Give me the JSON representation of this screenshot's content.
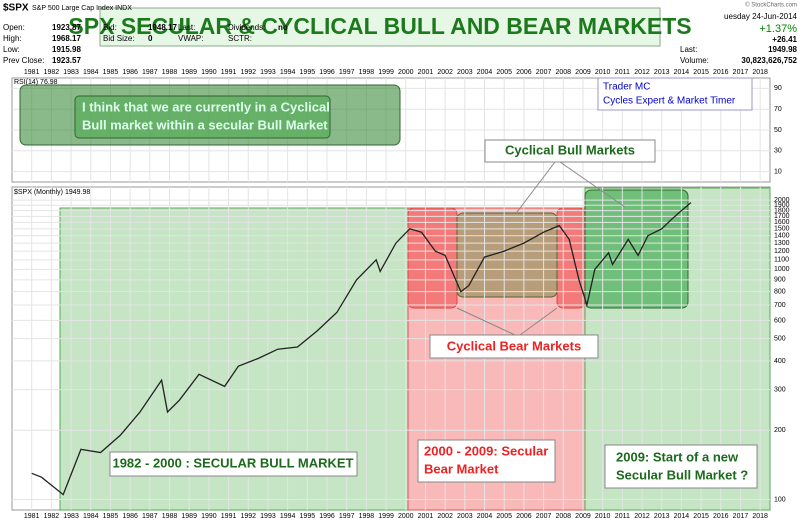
{
  "chart_data": {
    "type": "line",
    "title": "SPX SECULAR & CYCLICAL BULL AND BEAR MARKETS",
    "header": {
      "symbol": "$SPX",
      "name": "S&P 500 Large Cap Index INDX",
      "date": "uesday 24-Jun-2014",
      "fields": [
        [
          "Open:",
          "1923.87"
        ],
        [
          "High:",
          "1968.17"
        ],
        [
          "Low:",
          "1915.98"
        ],
        [
          "Prev Close:",
          "1923.57"
        ]
      ],
      "fields2": [
        [
          "Bid:",
          "1948.17"
        ],
        [
          "Bid Size:",
          "0"
        ]
      ],
      "fields3": [
        [
          "Last:",
          ""
        ],
        [
          "VWAP:",
          ""
        ]
      ],
      "fields4": [
        [
          "Dividends:",
          "no"
        ],
        [
          "SCTR:",
          ""
        ]
      ],
      "change_pct": "+1.37%",
      "change": "+26.41",
      "last": [
        "Last:",
        "1949.98"
      ],
      "volume": [
        "Volume:",
        "30,823,626,752"
      ],
      "credit": "© StockCharts.com"
    },
    "rsi_label": "RSI(14) 76.98",
    "rsi_ylim": [
      0,
      100
    ],
    "rsi_yticks": [
      10,
      30,
      50,
      70,
      90
    ],
    "price_label": "$SPX (Monthly) 1949.98",
    "log_scale": true,
    "color": "#222222",
    "x": [
      1981,
      1981.5,
      1982.6,
      1983.5,
      1984.5,
      1985.5,
      1986.5,
      1987.6,
      1987.9,
      1988.5,
      1989.5,
      1990.8,
      1991.5,
      1992.5,
      1993.5,
      1994.5,
      1995.5,
      1996.5,
      1997.5,
      1998.5,
      1998.7,
      1999.5,
      2000.2,
      2000.8,
      2001.5,
      2002.0,
      2002.8,
      2003.2,
      2004.0,
      2005.0,
      2006.0,
      2007.0,
      2007.8,
      2008.3,
      2008.8,
      2009.2,
      2009.6,
      2010.3,
      2010.5,
      2011.3,
      2011.8,
      2012.3,
      2013.0,
      2013.5,
      2014.0,
      2014.48
    ],
    "values": [
      130,
      125,
      105,
      165,
      160,
      190,
      240,
      330,
      240,
      270,
      350,
      310,
      380,
      410,
      450,
      460,
      540,
      650,
      900,
      1100,
      980,
      1300,
      1500,
      1450,
      1200,
      1150,
      800,
      850,
      1130,
      1200,
      1300,
      1450,
      1550,
      1350,
      900,
      700,
      1000,
      1180,
      1050,
      1350,
      1150,
      1400,
      1500,
      1650,
      1800,
      1949.98
    ],
    "xlim": [
      1980,
      2018.5
    ],
    "xticks": [
      1981,
      1982,
      1983,
      1984,
      1985,
      1986,
      1987,
      1988,
      1989,
      1990,
      1991,
      1992,
      1993,
      1994,
      1995,
      1996,
      1997,
      1998,
      1999,
      2000,
      2001,
      2002,
      2003,
      2004,
      2005,
      2006,
      2007,
      2008,
      2009,
      2010,
      2011,
      2012,
      2013,
      2014,
      2015,
      2016,
      2017,
      2018
    ],
    "ylim": [
      90,
      2280
    ],
    "yticks": [
      100,
      200,
      300,
      400,
      500,
      600,
      700,
      800,
      900,
      1000,
      1100,
      1200,
      1300,
      1400,
      1500,
      1600,
      1700,
      1800,
      1900,
      2000
    ],
    "annotations": {
      "current": [
        "I think that we are currently in a Cyclical",
        "Bull market within  a secular Bull Market"
      ],
      "author": [
        "Trader MC",
        "Cycles Expert & Market Timer"
      ],
      "cyclical_bull": "Cyclical Bull Markets",
      "cyclical_bear": "Cyclical Bear Markets",
      "secular_bull": "1982 - 2000 : SECULAR BULL MARKET",
      "secular_bear": [
        "2000 - 2009: Secular",
        "Bear Market"
      ],
      "new_bull": [
        "2009: Start of a new",
        "Secular Bull Market ?"
      ]
    }
  }
}
